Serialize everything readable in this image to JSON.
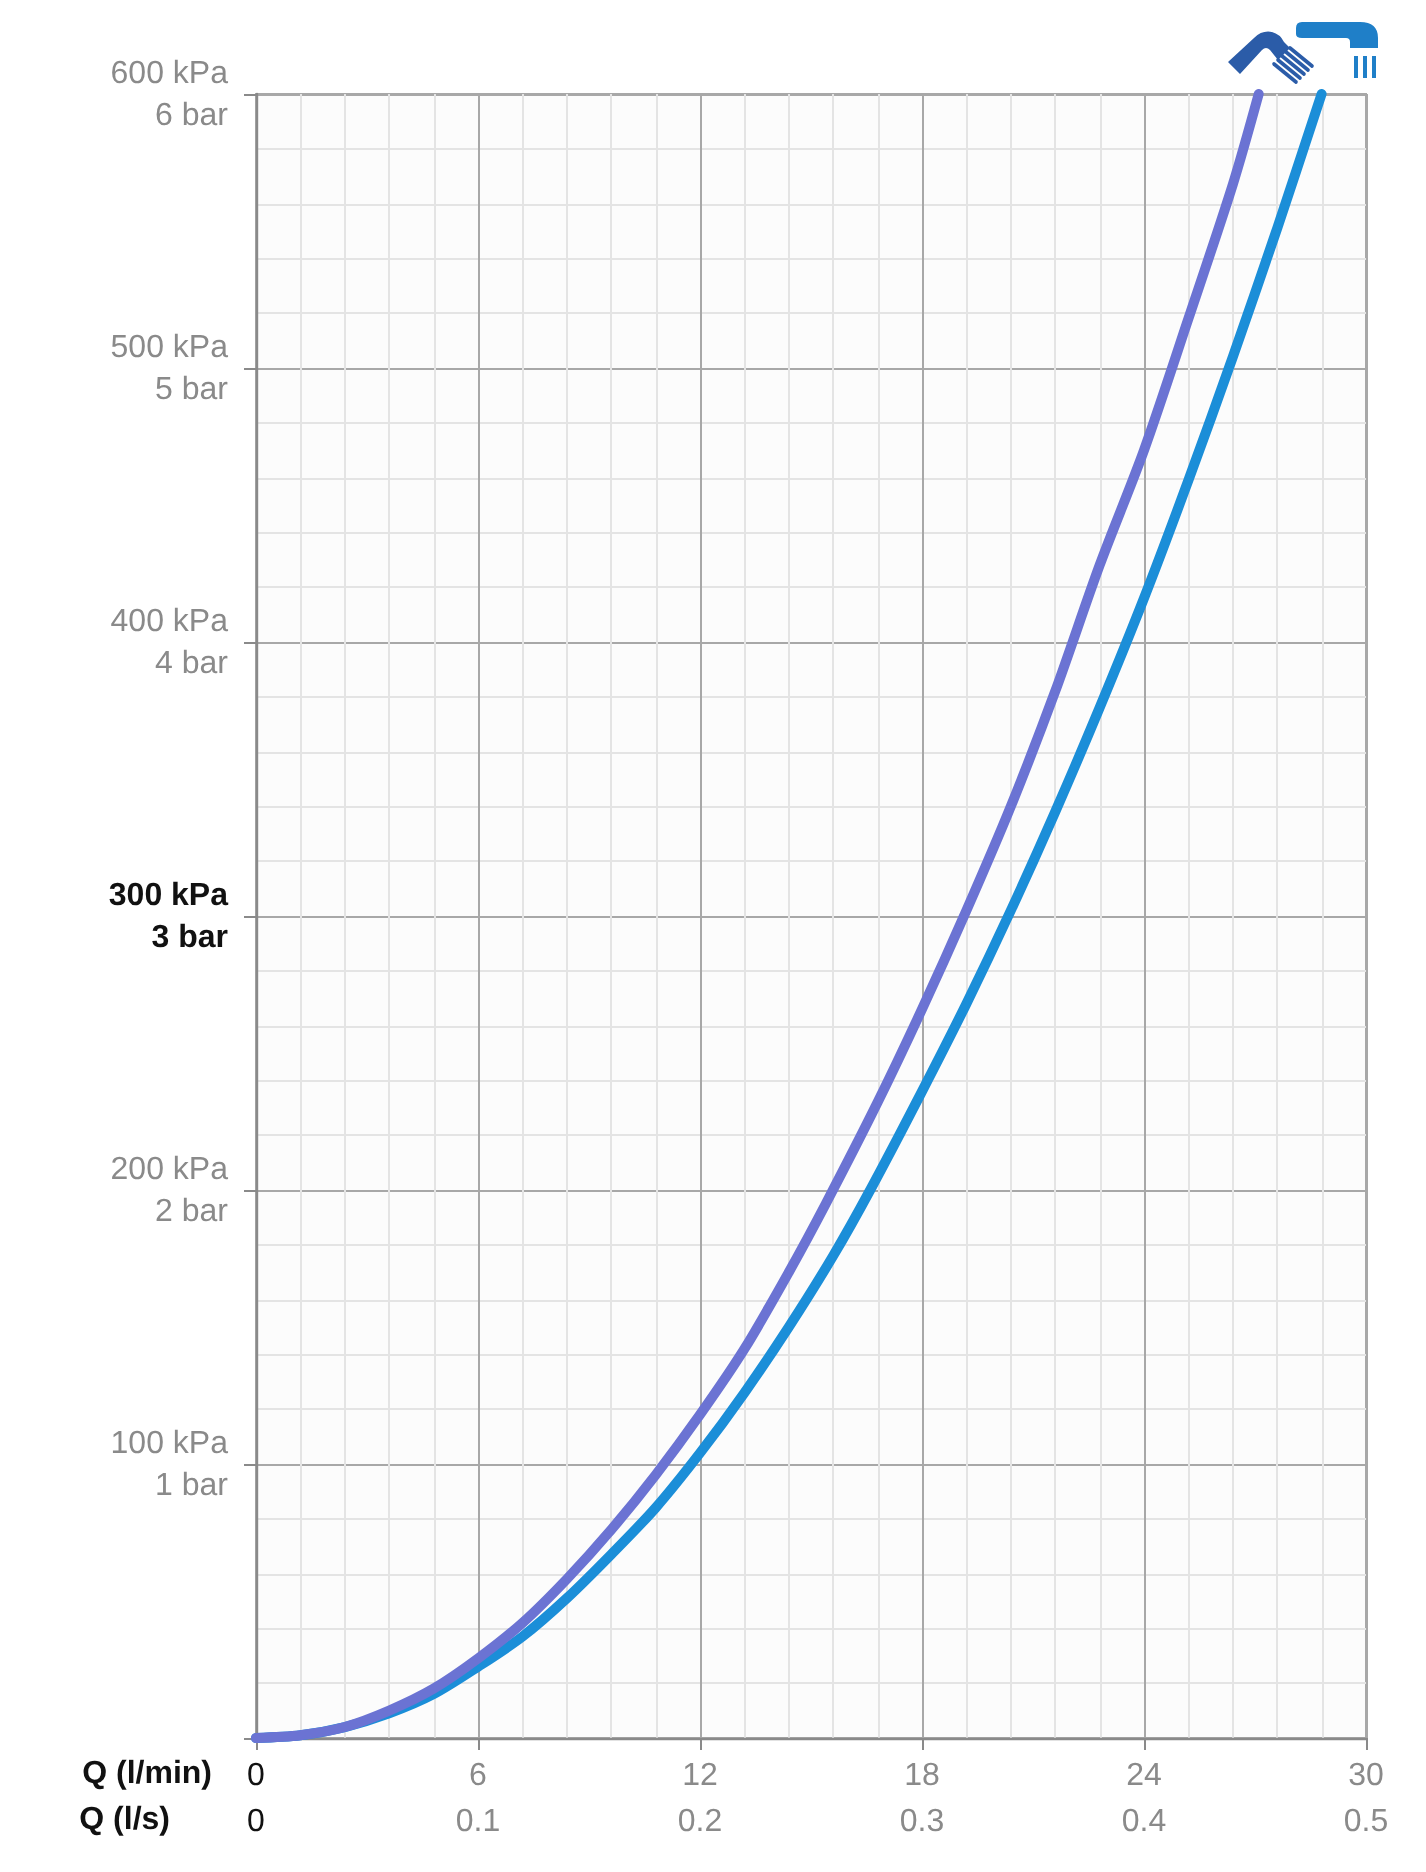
{
  "chart_data": {
    "type": "line",
    "xlabel": "Q (l/min)",
    "x2label": "Q (l/s)",
    "xlim": [
      0,
      30
    ],
    "xticks": [
      0,
      6,
      12,
      18,
      24,
      30
    ],
    "x2lim": [
      0,
      0.5
    ],
    "x2ticks": [
      0,
      0.1,
      0.2,
      0.3,
      0.4,
      0.5
    ],
    "ylim": [
      0,
      600
    ],
    "yticks": [
      {
        "value": 0,
        "label": null
      },
      {
        "value": 100,
        "label": "100 kPa"
      },
      {
        "value": 200,
        "label": "200 kPa"
      },
      {
        "value": 300,
        "label": "300 kPa"
      },
      {
        "value": 400,
        "label": "400 kPa"
      },
      {
        "value": 500,
        "label": "500 kPa"
      },
      {
        "value": 600,
        "label": "600 kPa"
      }
    ],
    "y2lim": [
      0,
      6
    ],
    "y2ticks": [
      {
        "value": 1,
        "label": "1 bar"
      },
      {
        "value": 2,
        "label": "2 bar"
      },
      {
        "value": 3,
        "label": "3 bar"
      },
      {
        "value": 4,
        "label": "4 bar"
      },
      {
        "value": 5,
        "label": "5 bar"
      },
      {
        "value": 6,
        "label": "6 bar"
      }
    ],
    "grid": true,
    "marker": "none",
    "line_style": "solid",
    "series": [
      {
        "color": "#1b8ed8",
        "x": [
          0,
          1.2,
          2.4,
          3.6,
          4.8,
          6,
          7.2,
          8.4,
          9.6,
          10.8,
          12,
          13.2,
          14.4,
          15.6,
          16.6,
          18,
          19.2,
          20.4,
          21.6,
          22.8,
          24,
          25.2,
          26.4,
          27.6,
          28.8
        ],
        "values": [
          0,
          1,
          4,
          9,
          16,
          26,
          37,
          51,
          67,
          84,
          104,
          126,
          150,
          176,
          200,
          236,
          268,
          302,
          338,
          376,
          416,
          459,
          504,
          551,
          600
        ]
      },
      {
        "color": "#6b73d3",
        "x": [
          0,
          1.2,
          2.4,
          3.6,
          4.8,
          6,
          7.2,
          8.4,
          9.6,
          10.8,
          12,
          13.2,
          14.4,
          15.4,
          16.8,
          18,
          19.2,
          20.4,
          21.6,
          22.8,
          24,
          25.2,
          26.4,
          27.1
        ],
        "values": [
          0,
          1,
          4,
          10,
          18,
          29,
          42,
          58,
          76,
          96,
          118,
          142,
          170,
          195,
          232,
          266,
          302,
          340,
          382,
          428,
          470,
          518,
          567,
          600
        ]
      }
    ]
  }
}
